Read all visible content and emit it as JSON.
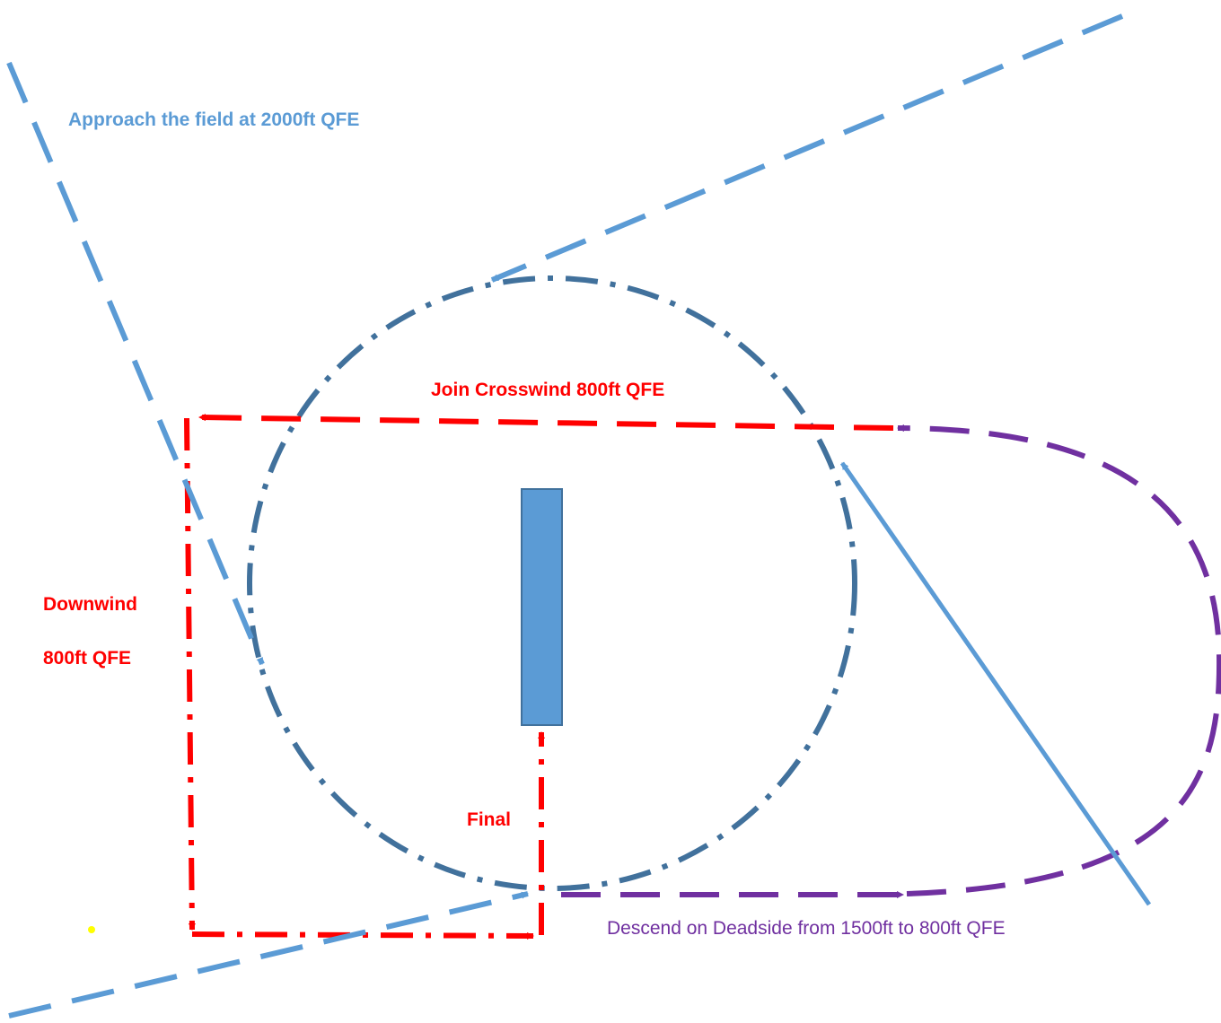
{
  "labels": {
    "approach": "Approach the field at 2000ft QFE",
    "crosswind": "Join Crosswind 800ft QFE",
    "downwind_1": "Downwind",
    "downwind_2": "800ft QFE",
    "final": "Final",
    "deadside": "Descend on Deadside from 1500ft to 800ft QFE"
  },
  "colors": {
    "approach_lines": "#5B9BD5",
    "circuit_overhead": "#41719C",
    "circuit_pattern": "#FF0000",
    "deadside_descent": "#7030A0",
    "runway_fill": "#5B9BD5",
    "runway_border": "#41719C",
    "marker_dot": "#FFFF00"
  }
}
